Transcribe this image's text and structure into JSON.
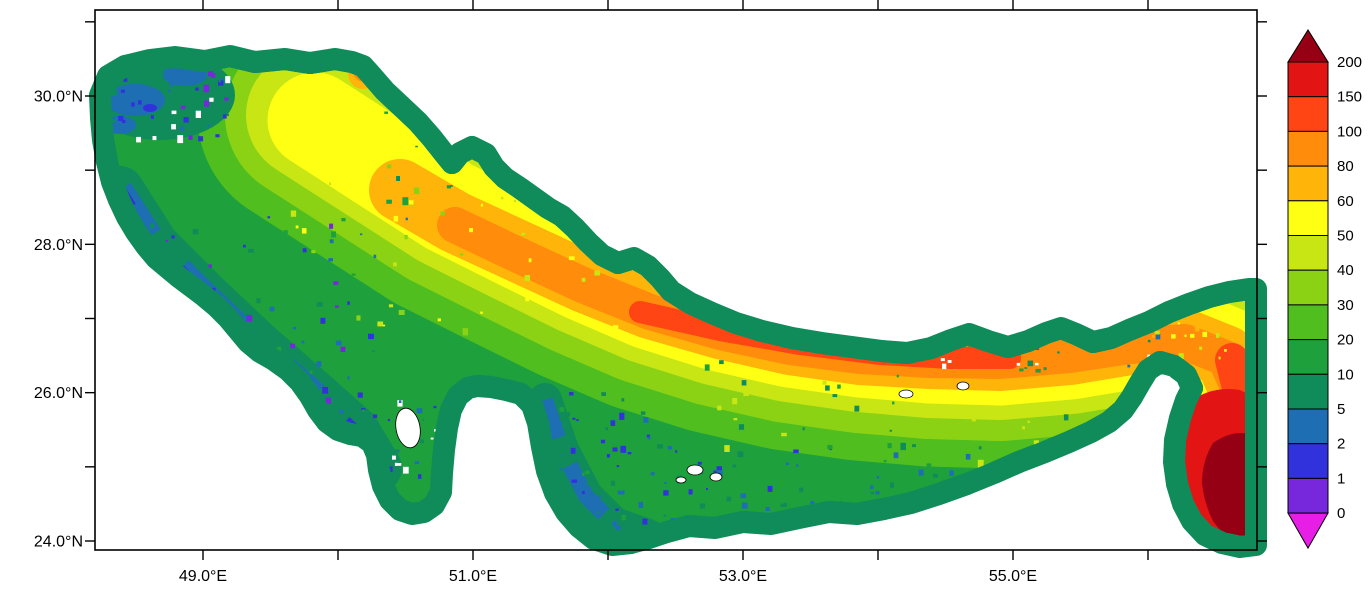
{
  "figure": {
    "background": "#FFFFFF",
    "frame_color": "#000000",
    "land_color": "#FFFFFF",
    "coastline_color": "#000000"
  },
  "axes": {
    "x": {
      "major": [
        {
          "label": "49.0°E",
          "lon": 49
        },
        {
          "label": "51.0°E",
          "lon": 51
        },
        {
          "label": "53.0°E",
          "lon": 53
        },
        {
          "label": "55.0°E",
          "lon": 55
        }
      ],
      "minor_lons": [
        49,
        50,
        51,
        52,
        53,
        54,
        55,
        56
      ]
    },
    "y": {
      "major": [
        {
          "label": "30.0°N",
          "lat": 30
        },
        {
          "label": "28.0°N",
          "lat": 28
        },
        {
          "label": "26.0°N",
          "lat": 26
        },
        {
          "label": "24.0°N",
          "lat": 24
        }
      ],
      "minor_lats": [
        24,
        25,
        26,
        27,
        28,
        29,
        30,
        31
      ]
    }
  },
  "colorbar": {
    "labels": [
      "200",
      "150",
      "100",
      "80",
      "60",
      "50",
      "40",
      "30",
      "20",
      "10",
      "5",
      "2",
      "1",
      "0"
    ],
    "cell_colors_top_to_bottom": [
      "#E31414",
      "#FF4514",
      "#FF8C0A",
      "#FFB40A",
      "#FFFF14",
      "#C8E614",
      "#8CD214",
      "#50BE1E",
      "#1EA03C",
      "#0F8C5A",
      "#1E6EB4",
      "#3232DC",
      "#7828DC"
    ],
    "over_arrow_color": "#960014",
    "under_arrow_color": "#E61EE6",
    "position": "right"
  },
  "chart_data": {
    "type": "heatmap",
    "title": "",
    "x": {
      "axis": "longitude",
      "tick_labels": [
        "49.0°E",
        "51.0°E",
        "53.0°E",
        "55.0°E"
      ],
      "range_deg_east": [
        48.2,
        56.8
      ],
      "minor_tick_interval_deg": 1
    },
    "y": {
      "axis": "latitude",
      "tick_labels": [
        "30.0°N",
        "28.0°N",
        "26.0°N",
        "24.0°N"
      ],
      "range_deg_north": [
        23.9,
        31.2
      ],
      "minor_tick_interval_deg": 1
    },
    "levels": [
      0,
      1,
      2,
      5,
      10,
      20,
      30,
      40,
      50,
      60,
      80,
      100,
      150,
      200
    ],
    "palette": [
      "#E61EE6",
      "#7828DC",
      "#3232DC",
      "#1E6EB4",
      "#0F8C5A",
      "#1EA03C",
      "#50BE1E",
      "#8CD214",
      "#C8E614",
      "#FFFF14",
      "#FFB40A",
      "#FF8C0A",
      "#FF4514",
      "#E31414",
      "#960014"
    ],
    "colorbar_position": "right",
    "grid": false,
    "land_mask": "white",
    "notes": [
      "Filled-contour gridded field over an elongated semi-enclosed sea (Persian-Gulf-shaped basin) with land masked in white",
      "Most of the basin lies in the 10-60 range (greens to yellow)",
      "A band of 60-150 (orange to orange-red) runs along the central/northern axis toward the strait at the eastern end",
      "Values exceed 200 (dark red) in the deep basin at the lower-right (southeast) corner",
      "Shallow margins of 0-10 (teal, blue, purple speckle) fringe all coasts, the northwest head and the peninsula/bay area at bottom-center"
    ]
  }
}
